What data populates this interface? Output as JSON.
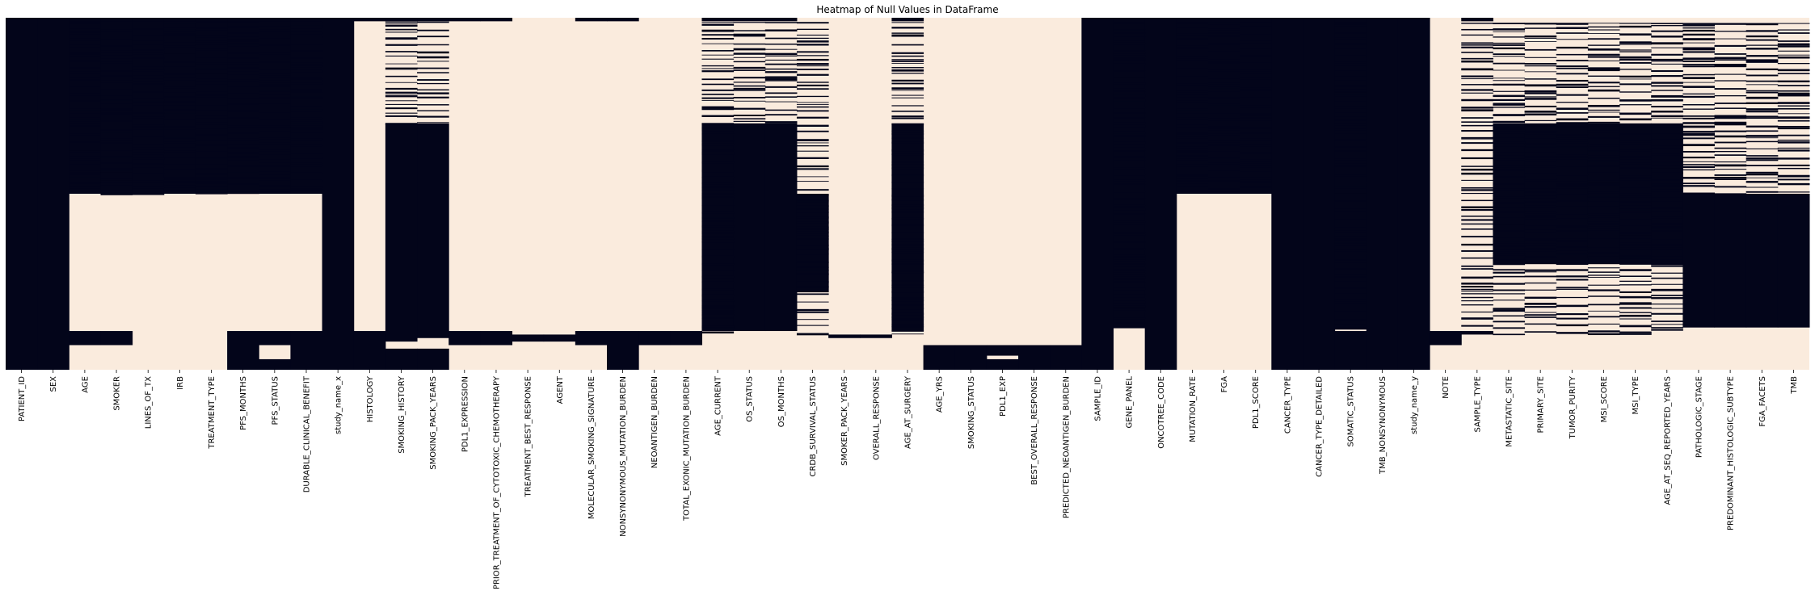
{
  "chart_data": {
    "type": "heatmap",
    "title": "Heatmap of Null Values in DataFrame",
    "xlabel": "",
    "ylabel": "",
    "legend": "none",
    "grid": false,
    "value_encoding": {
      "null": 1,
      "present": 0
    },
    "colors": {
      "null": "#03051a",
      "present": "#faebdd"
    },
    "columns": [
      "PATIENT_ID",
      "SEX",
      "AGE",
      "SMOKER",
      "LINES_OF_TX",
      "IRB",
      "TREATMENT_TYPE",
      "PFS_MONTHS",
      "PFS_STATUS",
      "DURABLE_CLINICAL_BENEFIT",
      "study_name_x",
      "HISTOLOGY",
      "SMOKING_HISTORY",
      "SMOKING_PACK_YEARS",
      "PDL1_EXPRESSION",
      "PRIOR_TREATMENT_OF_CYTOTOXIC_CHEMOTHERAPY",
      "TREATMENT_BEST_RESPONSE",
      "AGENT",
      "MOLECULAR_SMOKING_SIGNATURE",
      "NONSYNONYMOUS_MUTATION_BURDEN",
      "NEOANTIGEN_BURDEN",
      "TOTAL_EXONIC_MUTATION_BURDEN",
      "AGE_CURRENT",
      "OS_STATUS",
      "OS_MONTHS",
      "CRDB_SURVIVAL_STATUS",
      "SMOKER_PACK_YEARS",
      "OVERALL_RESPONSE",
      "AGE_AT_SURGERY",
      "AGE_YRS",
      "SMOKING_STATUS",
      "PDL1_EXP",
      "BEST_OVERALL_RESPONSE",
      "PREDICTED_NEOANTIGEN_BURDEN",
      "SAMPLE_ID",
      "GENE_PANEL",
      "ONCOTREE_CODE",
      "MUTATION_RATE",
      "FGA",
      "PDL1_SCORE",
      "CANCER_TYPE",
      "CANCER_TYPE_DETAILED",
      "SOMATIC_STATUS",
      "TMB_NONSYNONYMOUS",
      "study_name_y",
      "NOTE",
      "SAMPLE_TYPE",
      "METASTATIC_SITE",
      "PRIMARY_SITE",
      "TUMOR_PURITY",
      "MSI_SCORE",
      "MSI_TYPE",
      "AGE_AT_SEQ_REPORTED_YEARS",
      "PATHOLOGIC_STAGE",
      "PREDOMINANT_HISTOLOGIC_SUBTYPE",
      "FGA_FACETS",
      "TMB"
    ],
    "row_fraction_ranges": "each row lists fractional row intervals [start, end] (0 = first record, 1 = last record) where values are null",
    "null_blocks": [
      [
        [
          0,
          1
        ]
      ],
      [
        [
          0,
          1
        ]
      ],
      [
        [
          0,
          0.5
        ],
        [
          0.89,
          0.93
        ]
      ],
      [
        [
          0,
          0.5
        ],
        [
          0.89,
          0.93
        ]
      ],
      [
        [
          0,
          0.5
        ]
      ],
      [
        [
          0,
          0.5
        ]
      ],
      [
        [
          0,
          0.5
        ]
      ],
      [
        [
          0,
          0.5
        ],
        [
          0.89,
          1
        ]
      ],
      [
        [
          0,
          0.5
        ],
        [
          0.89,
          0.93
        ],
        [
          0.97,
          1
        ]
      ],
      [
        [
          0,
          0.5
        ],
        [
          0.89,
          1
        ]
      ],
      [
        [
          0,
          1
        ]
      ],
      [
        [
          0,
          0.01
        ],
        [
          0.89,
          1
        ]
      ],
      [
        [
          0,
          0.01
        ],
        [
          0.3,
          0.92
        ],
        [
          0.94,
          1
        ]
      ],
      [
        [
          0,
          0.01
        ],
        [
          0.3,
          0.91
        ],
        [
          0.94,
          1
        ]
      ],
      [
        [
          0,
          0.01
        ],
        [
          0.89,
          0.93
        ]
      ],
      [
        [
          0,
          0.01
        ],
        [
          0.89,
          0.93
        ]
      ],
      [
        [
          0.9,
          0.92
        ]
      ],
      [
        [
          0.9,
          0.92
        ]
      ],
      [
        [
          0,
          0.01
        ],
        [
          0.89,
          0.93
        ]
      ],
      [
        [
          0,
          0.01
        ],
        [
          0.89,
          1
        ]
      ],
      [
        [
          0.89,
          0.93
        ]
      ],
      [
        [
          0.89,
          0.93
        ]
      ],
      [
        [
          0,
          0.01
        ],
        [
          0.3,
          0.89
        ]
      ],
      [
        [
          0,
          0.01
        ],
        [
          0.3,
          0.89
        ]
      ],
      [
        [
          0,
          0.01
        ],
        [
          0.3,
          0.89
        ]
      ],
      [
        [
          0.5,
          0.78
        ]
      ],
      [
        [
          0.9,
          0.91
        ]
      ],
      [
        [
          0.9,
          0.91
        ]
      ],
      [
        [
          0,
          0.01
        ],
        [
          0.3,
          0.89
        ]
      ],
      [
        [
          0.93,
          1
        ]
      ],
      [
        [
          0.93,
          1
        ]
      ],
      [
        [
          0.93,
          0.96
        ],
        [
          0.97,
          1
        ]
      ],
      [
        [
          0.93,
          1
        ]
      ],
      [
        [
          0.93,
          1
        ]
      ],
      [
        [
          0,
          1
        ]
      ],
      [
        [
          0,
          0.88
        ]
      ],
      [
        [
          0,
          1
        ]
      ],
      [
        [
          0,
          0.5
        ]
      ],
      [
        [
          0,
          0.5
        ]
      ],
      [
        [
          0,
          0.5
        ]
      ],
      [
        [
          0,
          1
        ]
      ],
      [
        [
          0,
          1
        ]
      ],
      [
        [
          0,
          0.88
        ],
        [
          0.89,
          1
        ]
      ],
      [
        [
          0,
          1
        ]
      ],
      [
        [
          0,
          1
        ]
      ],
      [
        [
          0.89,
          0.93
        ]
      ],
      [
        [
          0,
          0.01
        ],
        [
          0.89,
          0.9
        ]
      ],
      [
        [
          0.3,
          0.7
        ]
      ],
      [
        [
          0.3,
          0.7
        ]
      ],
      [
        [
          0.3,
          0.7
        ]
      ],
      [
        [
          0.3,
          0.7
        ]
      ],
      [
        [
          0.3,
          0.7
        ]
      ],
      [
        [
          0.3,
          0.7
        ]
      ],
      [
        [
          0.5,
          0.88
        ]
      ],
      [
        [
          0.5,
          0.88
        ]
      ],
      [
        [
          0.5,
          0.88
        ]
      ],
      [
        [
          0.5,
          0.88
        ]
      ]
    ]
  }
}
